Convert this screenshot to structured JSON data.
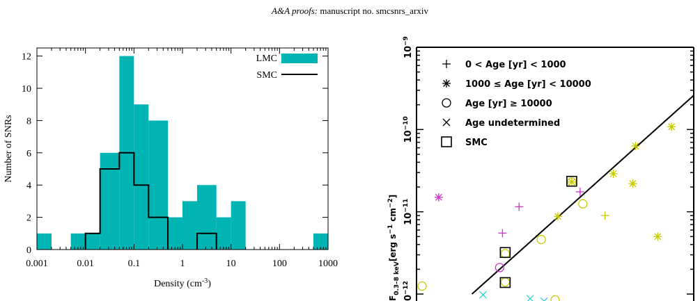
{
  "header": {
    "journal": "A&A proofs:",
    "manuscript": "manuscript no. smcsnrs_arxiv"
  },
  "chart_data": [
    {
      "type": "bar",
      "subtype": "histogram",
      "xscale": "log",
      "xlim": [
        0.001,
        1000
      ],
      "ylim": [
        0,
        12.5
      ],
      "xlabel": "Density (cm",
      "xlabel_sup": "-3",
      "xlabel_close": ")",
      "ylabel": "Number of SNRs",
      "xticks": [
        {
          "v": 0.001,
          "label": "0.001"
        },
        {
          "v": 0.01,
          "label": "0.01"
        },
        {
          "v": 0.1,
          "label": "0.1"
        },
        {
          "v": 1,
          "label": "1"
        },
        {
          "v": 10,
          "label": "10"
        },
        {
          "v": 100,
          "label": "100"
        },
        {
          "v": 1000,
          "label": "1000"
        }
      ],
      "yticks": [
        {
          "v": 0,
          "label": "0"
        },
        {
          "v": 2,
          "label": "2"
        },
        {
          "v": 4,
          "label": "4"
        },
        {
          "v": 6,
          "label": "6"
        },
        {
          "v": 8,
          "label": "8"
        },
        {
          "v": 10,
          "label": "10"
        },
        {
          "v": 12,
          "label": "12"
        }
      ],
      "legend": {
        "position": "top-right",
        "lmc_label": "LMC",
        "smc_label": "SMC"
      },
      "lmc_color": "#00b4b4",
      "bin_edges": [
        0.001,
        0.002,
        0.005,
        0.01,
        0.02,
        0.05,
        0.1,
        0.2,
        0.5,
        1,
        2,
        5,
        10,
        20,
        50,
        100,
        200,
        500,
        1000
      ],
      "series": [
        {
          "name": "LMC",
          "values": [
            1,
            0,
            1,
            1,
            6,
            12,
            9,
            8,
            2,
            3,
            4,
            2,
            3,
            0,
            0,
            0,
            0,
            1
          ]
        },
        {
          "name": "SMC",
          "values": [
            0,
            0,
            0,
            1,
            5,
            6,
            4,
            2,
            0,
            0,
            1,
            0,
            0,
            0,
            0,
            0,
            0,
            0
          ]
        }
      ]
    },
    {
      "type": "scatter",
      "xscale": "log",
      "yscale": "log",
      "ylim": [
        1e-12,
        1e-09
      ],
      "ytick_labels": [
        {
          "exp": -12,
          "base": "10",
          "sup": "−12"
        },
        {
          "exp": -11,
          "base": "10",
          "sup": "−11"
        },
        {
          "exp": -10,
          "base": "10",
          "sup": "−10"
        },
        {
          "exp": -9,
          "base": "10",
          "sup": "−9"
        }
      ],
      "ylabel": {
        "prefix": "F",
        "sub": "0.3–8 keV",
        "bracket_open": "[erg s",
        "sup1": "−1",
        "middle": "cm",
        "sup2": "−2",
        "bracket_close": "]"
      },
      "legend": [
        {
          "marker": "plus",
          "label": "0 < Age [yr] < 1000"
        },
        {
          "marker": "star",
          "label": "1000 ≤ Age [yr] < 10000"
        },
        {
          "marker": "circle",
          "label": "Age [yr] ≥ 10000"
        },
        {
          "marker": "cross",
          "label": "Age undetermined"
        },
        {
          "marker": "square",
          "label": "SMC"
        }
      ],
      "colors": {
        "magenta": "#cc33cc",
        "yellow": "#c8c800",
        "cyan": "#33cccc"
      },
      "x_log_range": [
        0,
        1
      ],
      "points": [
        {
          "marker": "star",
          "color": "magenta",
          "x": 0.08,
          "y": 1.5e-11
        },
        {
          "marker": "plus",
          "color": "magenta",
          "x": 0.37,
          "y": 1.15e-11
        },
        {
          "marker": "plus",
          "color": "magenta",
          "x": 0.31,
          "y": 5.5e-12
        },
        {
          "marker": "circle",
          "color": "magenta",
          "x": 0.3,
          "y": 2.1e-12
        },
        {
          "marker": "plus",
          "color": "magenta",
          "x": 0.59,
          "y": 1.75e-11
        },
        {
          "marker": "circle",
          "color": "yellow",
          "x": 0.02,
          "y": 1.25e-12
        },
        {
          "marker": "circle",
          "color": "yellow",
          "x": 0.32,
          "y": 3.1e-12
        },
        {
          "marker": "circle",
          "color": "yellow",
          "x": 0.45,
          "y": 4.6e-12
        },
        {
          "marker": "circle",
          "color": "yellow",
          "x": 0.32,
          "y": 1.4e-12
        },
        {
          "marker": "circle",
          "color": "yellow",
          "x": 0.56,
          "y": 2.3e-11
        },
        {
          "marker": "circle",
          "color": "yellow",
          "x": 0.6,
          "y": 1.25e-11
        },
        {
          "marker": "circle",
          "color": "yellow",
          "x": 0.5,
          "y": 8.5e-13
        },
        {
          "marker": "star",
          "color": "yellow",
          "x": 0.56,
          "y": 2.3e-11
        },
        {
          "marker": "star",
          "color": "yellow",
          "x": 0.51,
          "y": 8.8e-12
        },
        {
          "marker": "star",
          "color": "yellow",
          "x": 0.71,
          "y": 2.9e-11
        },
        {
          "marker": "star",
          "color": "yellow",
          "x": 0.78,
          "y": 2.2e-11
        },
        {
          "marker": "star",
          "color": "yellow",
          "x": 0.79,
          "y": 6.3e-11
        },
        {
          "marker": "star",
          "color": "yellow",
          "x": 0.92,
          "y": 1.08e-10
        },
        {
          "marker": "star",
          "color": "yellow",
          "x": 0.87,
          "y": 5e-12
        },
        {
          "marker": "plus",
          "color": "yellow",
          "x": 0.68,
          "y": 9e-12
        },
        {
          "marker": "cross",
          "color": "cyan",
          "x": 0.24,
          "y": 9.8e-13
        },
        {
          "marker": "cross",
          "color": "cyan",
          "x": 0.41,
          "y": 8.8e-13
        },
        {
          "marker": "cross",
          "color": "cyan",
          "x": 0.46,
          "y": 8.2e-13
        },
        {
          "marker": "square",
          "color": "black",
          "x": 0.56,
          "y": 2.35e-11
        },
        {
          "marker": "square",
          "color": "black",
          "x": 0.32,
          "y": 3.2e-12
        },
        {
          "marker": "square",
          "color": "black",
          "x": 0.32,
          "y": 1.38e-12
        }
      ],
      "fit_line": {
        "x": [
          0.2,
          1.0
        ],
        "y": [
          1e-12,
          2.6e-10
        ]
      }
    }
  ]
}
